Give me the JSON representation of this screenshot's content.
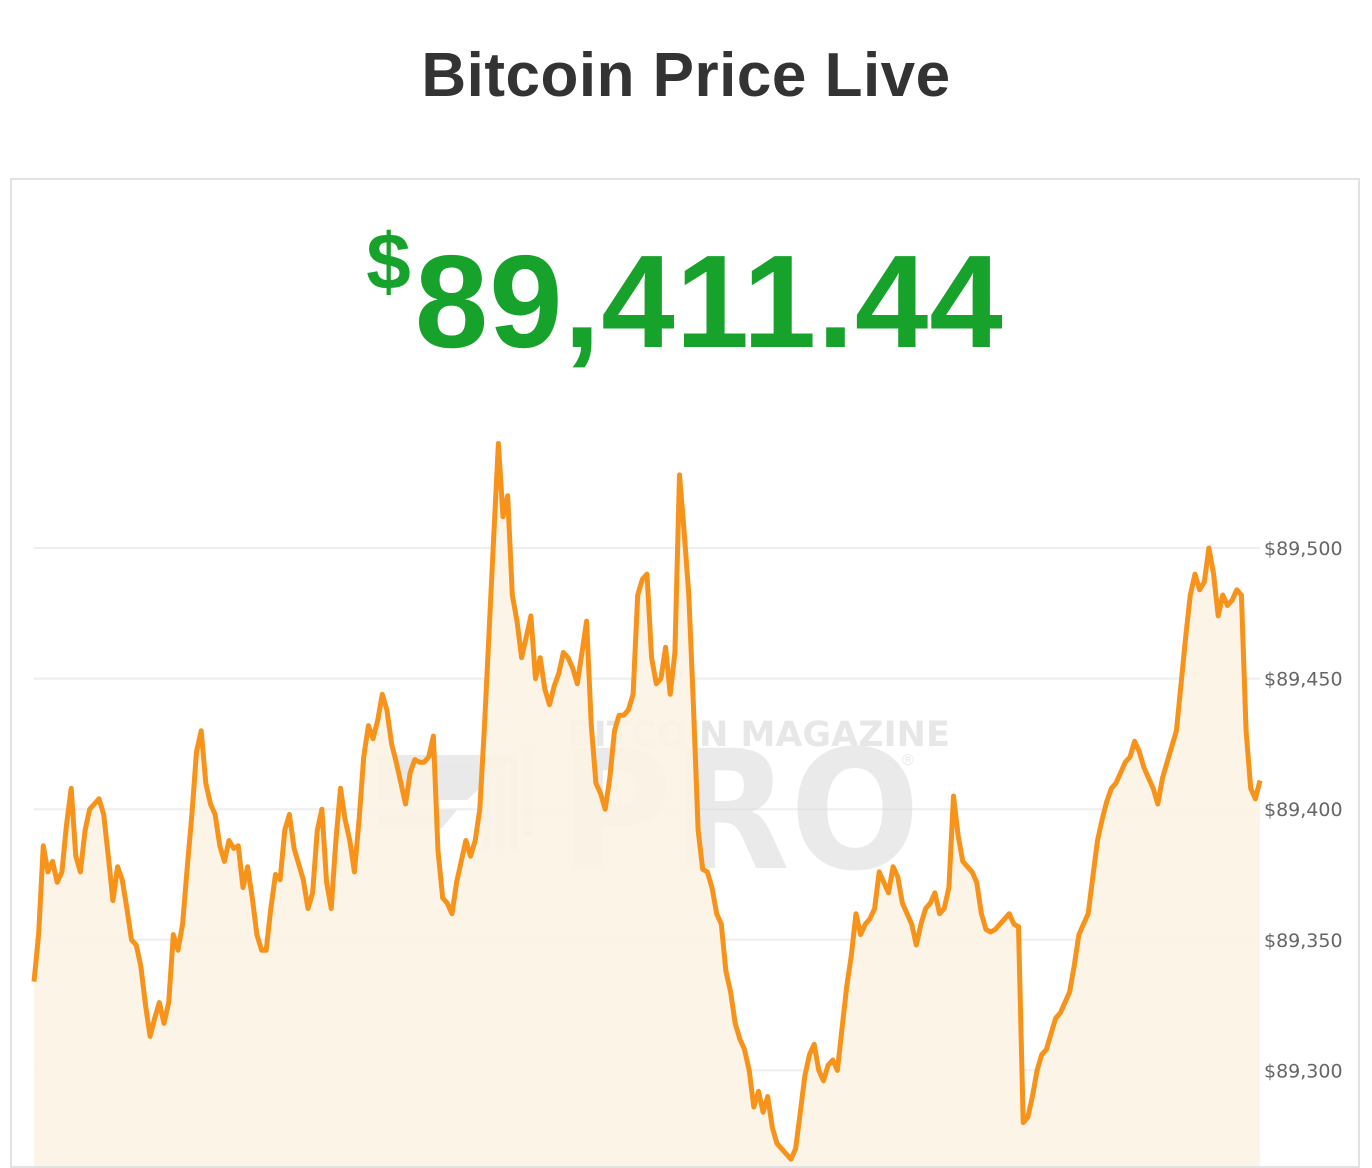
{
  "header": {
    "title": "Bitcoin Price Live"
  },
  "price": {
    "currency_symbol": "$",
    "value": "89,411.44"
  },
  "watermark": {
    "line1": "BITCOIN MAGAZINE",
    "line2": "PRO",
    "mark": "®"
  },
  "colors": {
    "price": "#17a22b",
    "line": "#f7931a",
    "fill": "#fdf3e5",
    "grid": "#eeeeee",
    "title": "#333333"
  },
  "chart_data": {
    "type": "area",
    "title": "",
    "xlabel": "",
    "ylabel": "",
    "ylim": [
      89270,
      89545
    ],
    "grid": true,
    "y_axis_position": "right",
    "y_ticks": [
      89500,
      89450,
      89400,
      89350,
      89300
    ],
    "y_tick_labels": [
      "$89,500",
      "$89,450",
      "$89,400",
      "$89,350",
      "$89,300"
    ],
    "series": [
      {
        "values": [
          89334,
          89352,
          89386,
          89376,
          89380,
          89372,
          89376,
          89394,
          89408,
          89382,
          89376,
          89392,
          89400,
          89402,
          89404,
          89398,
          89382,
          89365,
          89378,
          89373,
          89362,
          89350,
          89348,
          89340,
          89325,
          89313,
          89320,
          89326,
          89318,
          89326,
          89352,
          89346,
          89356,
          89378,
          89398,
          89422,
          89430,
          89410,
          89402,
          89398,
          89386,
          89380,
          89388,
          89385,
          89386,
          89370,
          89378,
          89366,
          89352,
          89346,
          89346,
          89362,
          89375,
          89373,
          89392,
          89398,
          89385,
          89379,
          89373,
          89362,
          89368,
          89392,
          89400,
          89372,
          89362,
          89388,
          89408,
          89396,
          89388,
          89376,
          89396,
          89420,
          89432,
          89427,
          89434,
          89444,
          89438,
          89425,
          89418,
          89410,
          89402,
          89414,
          89419,
          89418,
          89418,
          89420,
          89428,
          89384,
          89366,
          89364,
          89360,
          89372,
          89380,
          89388,
          89382,
          89388,
          89400,
          89432,
          89468,
          89505,
          89540,
          89512,
          89520,
          89482,
          89472,
          89458,
          89466,
          89474,
          89450,
          89458,
          89446,
          89440,
          89447,
          89452,
          89460,
          89458,
          89454,
          89448,
          89460,
          89472,
          89432,
          89410,
          89406,
          89400,
          89412,
          89430,
          89436,
          89436,
          89438,
          89444,
          89482,
          89488,
          89490,
          89458,
          89448,
          89450,
          89462,
          89444,
          89460,
          89528,
          89506,
          89482,
          89440,
          89392,
          89377,
          89376,
          89370,
          89360,
          89356,
          89338,
          89330,
          89318,
          89312,
          89308,
          89300,
          89286,
          89292,
          89284,
          89290,
          89278,
          89272,
          89270,
          89268,
          89266,
          89270,
          89284,
          89298,
          89306,
          89310,
          89300,
          89296,
          89302,
          89304,
          89300,
          89316,
          89332,
          89344,
          89360,
          89352,
          89356,
          89358,
          89362,
          89376,
          89372,
          89368,
          89378,
          89374,
          89364,
          89360,
          89356,
          89348,
          89356,
          89362,
          89364,
          89368,
          89360,
          89362,
          89370,
          89405,
          89390,
          89380,
          89378,
          89376,
          89372,
          89360,
          89354,
          89353,
          89354,
          89356,
          89358,
          89360,
          89356,
          89355,
          89280,
          89282,
          89290,
          89300,
          89306,
          89308,
          89314,
          89320,
          89322,
          89326,
          89330,
          89340,
          89352,
          89356,
          89360,
          89374,
          89388,
          89396,
          89403,
          89408,
          89410,
          89414,
          89418,
          89420,
          89426,
          89422,
          89416,
          89412,
          89408,
          89402,
          89412,
          89418,
          89424,
          89430,
          89448,
          89466,
          89482,
          89490,
          89484,
          89487,
          89500,
          89490,
          89474,
          89482,
          89478,
          89480,
          89484,
          89482,
          89430,
          89408,
          89404,
          89411
        ]
      }
    ]
  }
}
